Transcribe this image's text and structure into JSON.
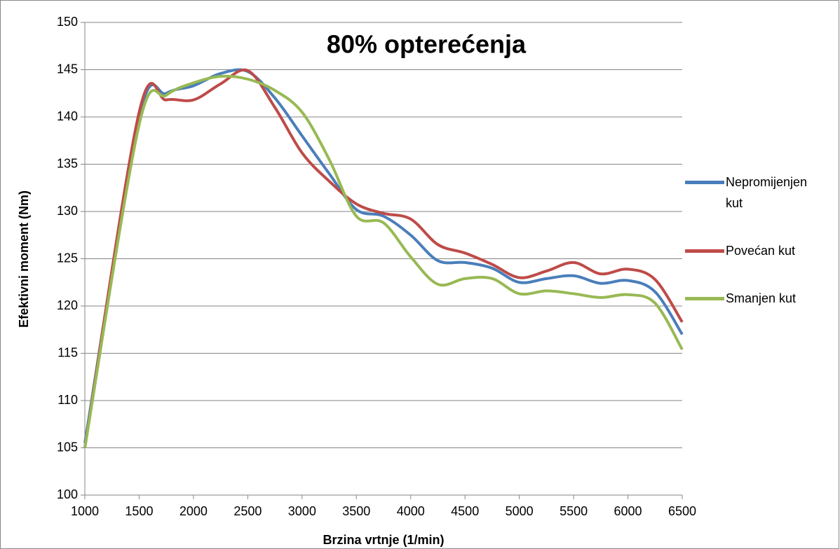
{
  "chart_data": {
    "type": "line",
    "title": "80% opterećenja",
    "x_label": "Brzina vrtnje (1/min)",
    "y_label": "Efektivni moment (Nm)",
    "x": [
      1000,
      1500,
      1750,
      2000,
      2250,
      2500,
      2750,
      3000,
      3250,
      3500,
      3750,
      4000,
      4250,
      4500,
      4750,
      5000,
      5250,
      5500,
      5750,
      6000,
      6250,
      6500
    ],
    "series": [
      {
        "name": "Nepromijenjen kut",
        "color": "#4a7ebb",
        "values": [
          105.5,
          140,
          142.5,
          143.3,
          144.6,
          144.8,
          142,
          138,
          134,
          130.2,
          129.5,
          127.5,
          124.8,
          124.6,
          124,
          122.5,
          122.9,
          123.2,
          122.4,
          122.7,
          121.5,
          117
        ]
      },
      {
        "name": "Povećan kut",
        "color": "#be4b48",
        "values": [
          105,
          140.5,
          141.8,
          141.8,
          143.5,
          144.9,
          141,
          136.2,
          133.2,
          130.8,
          129.8,
          129.2,
          126.5,
          125.6,
          124.4,
          123,
          123.7,
          124.6,
          123.4,
          123.9,
          122.8,
          118.3
        ]
      },
      {
        "name": "Smanjen kut",
        "color": "#98b954",
        "values": [
          105,
          139.2,
          142.3,
          143.6,
          144.3,
          144,
          142.8,
          140.5,
          135.5,
          129.5,
          128.8,
          125.2,
          122.3,
          122.9,
          122.9,
          121.3,
          121.6,
          121.3,
          120.9,
          121.2,
          120.3,
          115.4
        ]
      }
    ],
    "xlim": [
      1000,
      6500
    ],
    "xticks": [
      1000,
      1500,
      2000,
      2500,
      3000,
      3500,
      4000,
      4500,
      5000,
      5500,
      6000,
      6500
    ],
    "ylim": [
      100,
      150
    ],
    "yticks": [
      100,
      105,
      110,
      115,
      120,
      125,
      130,
      135,
      140,
      145,
      150
    ],
    "grid": true,
    "legend": "right"
  }
}
